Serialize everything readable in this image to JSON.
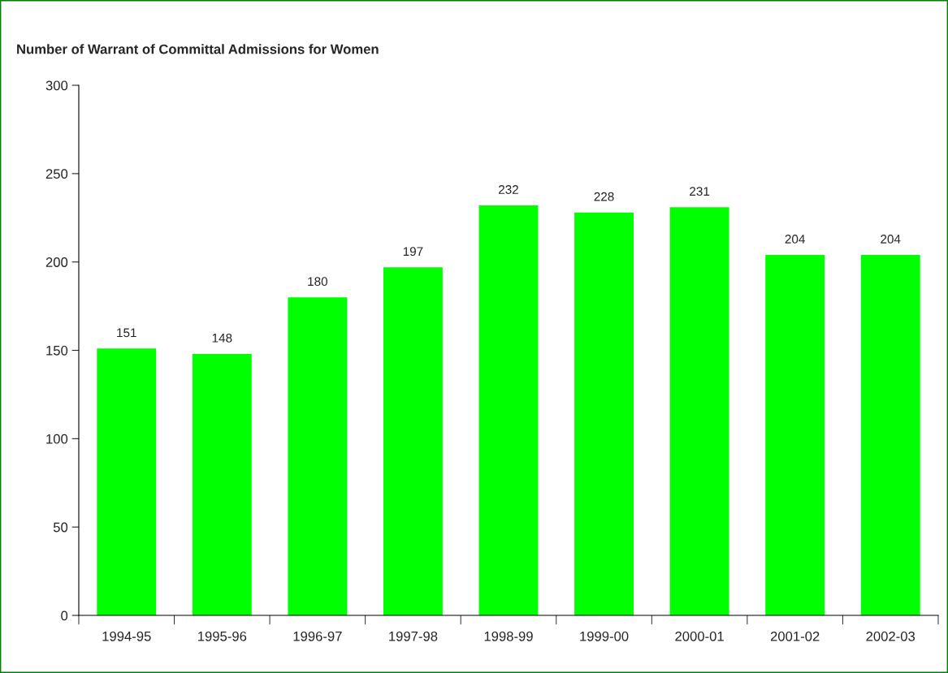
{
  "chart_data": {
    "type": "bar",
    "title": "Number of Warrant of Committal Admissions for Women",
    "categories": [
      "1994-95",
      "1995-96",
      "1996-97",
      "1997-98",
      "1998-99",
      "1999-00",
      "2000-01",
      "2001-02",
      "2002-03"
    ],
    "values": [
      151,
      148,
      180,
      197,
      232,
      228,
      231,
      204,
      204
    ],
    "color": "#00ff00",
    "ylim": [
      0,
      300
    ],
    "yticks": [
      0,
      50,
      100,
      150,
      200,
      250,
      300
    ],
    "grid": false,
    "legend": false,
    "data_labels": true
  }
}
